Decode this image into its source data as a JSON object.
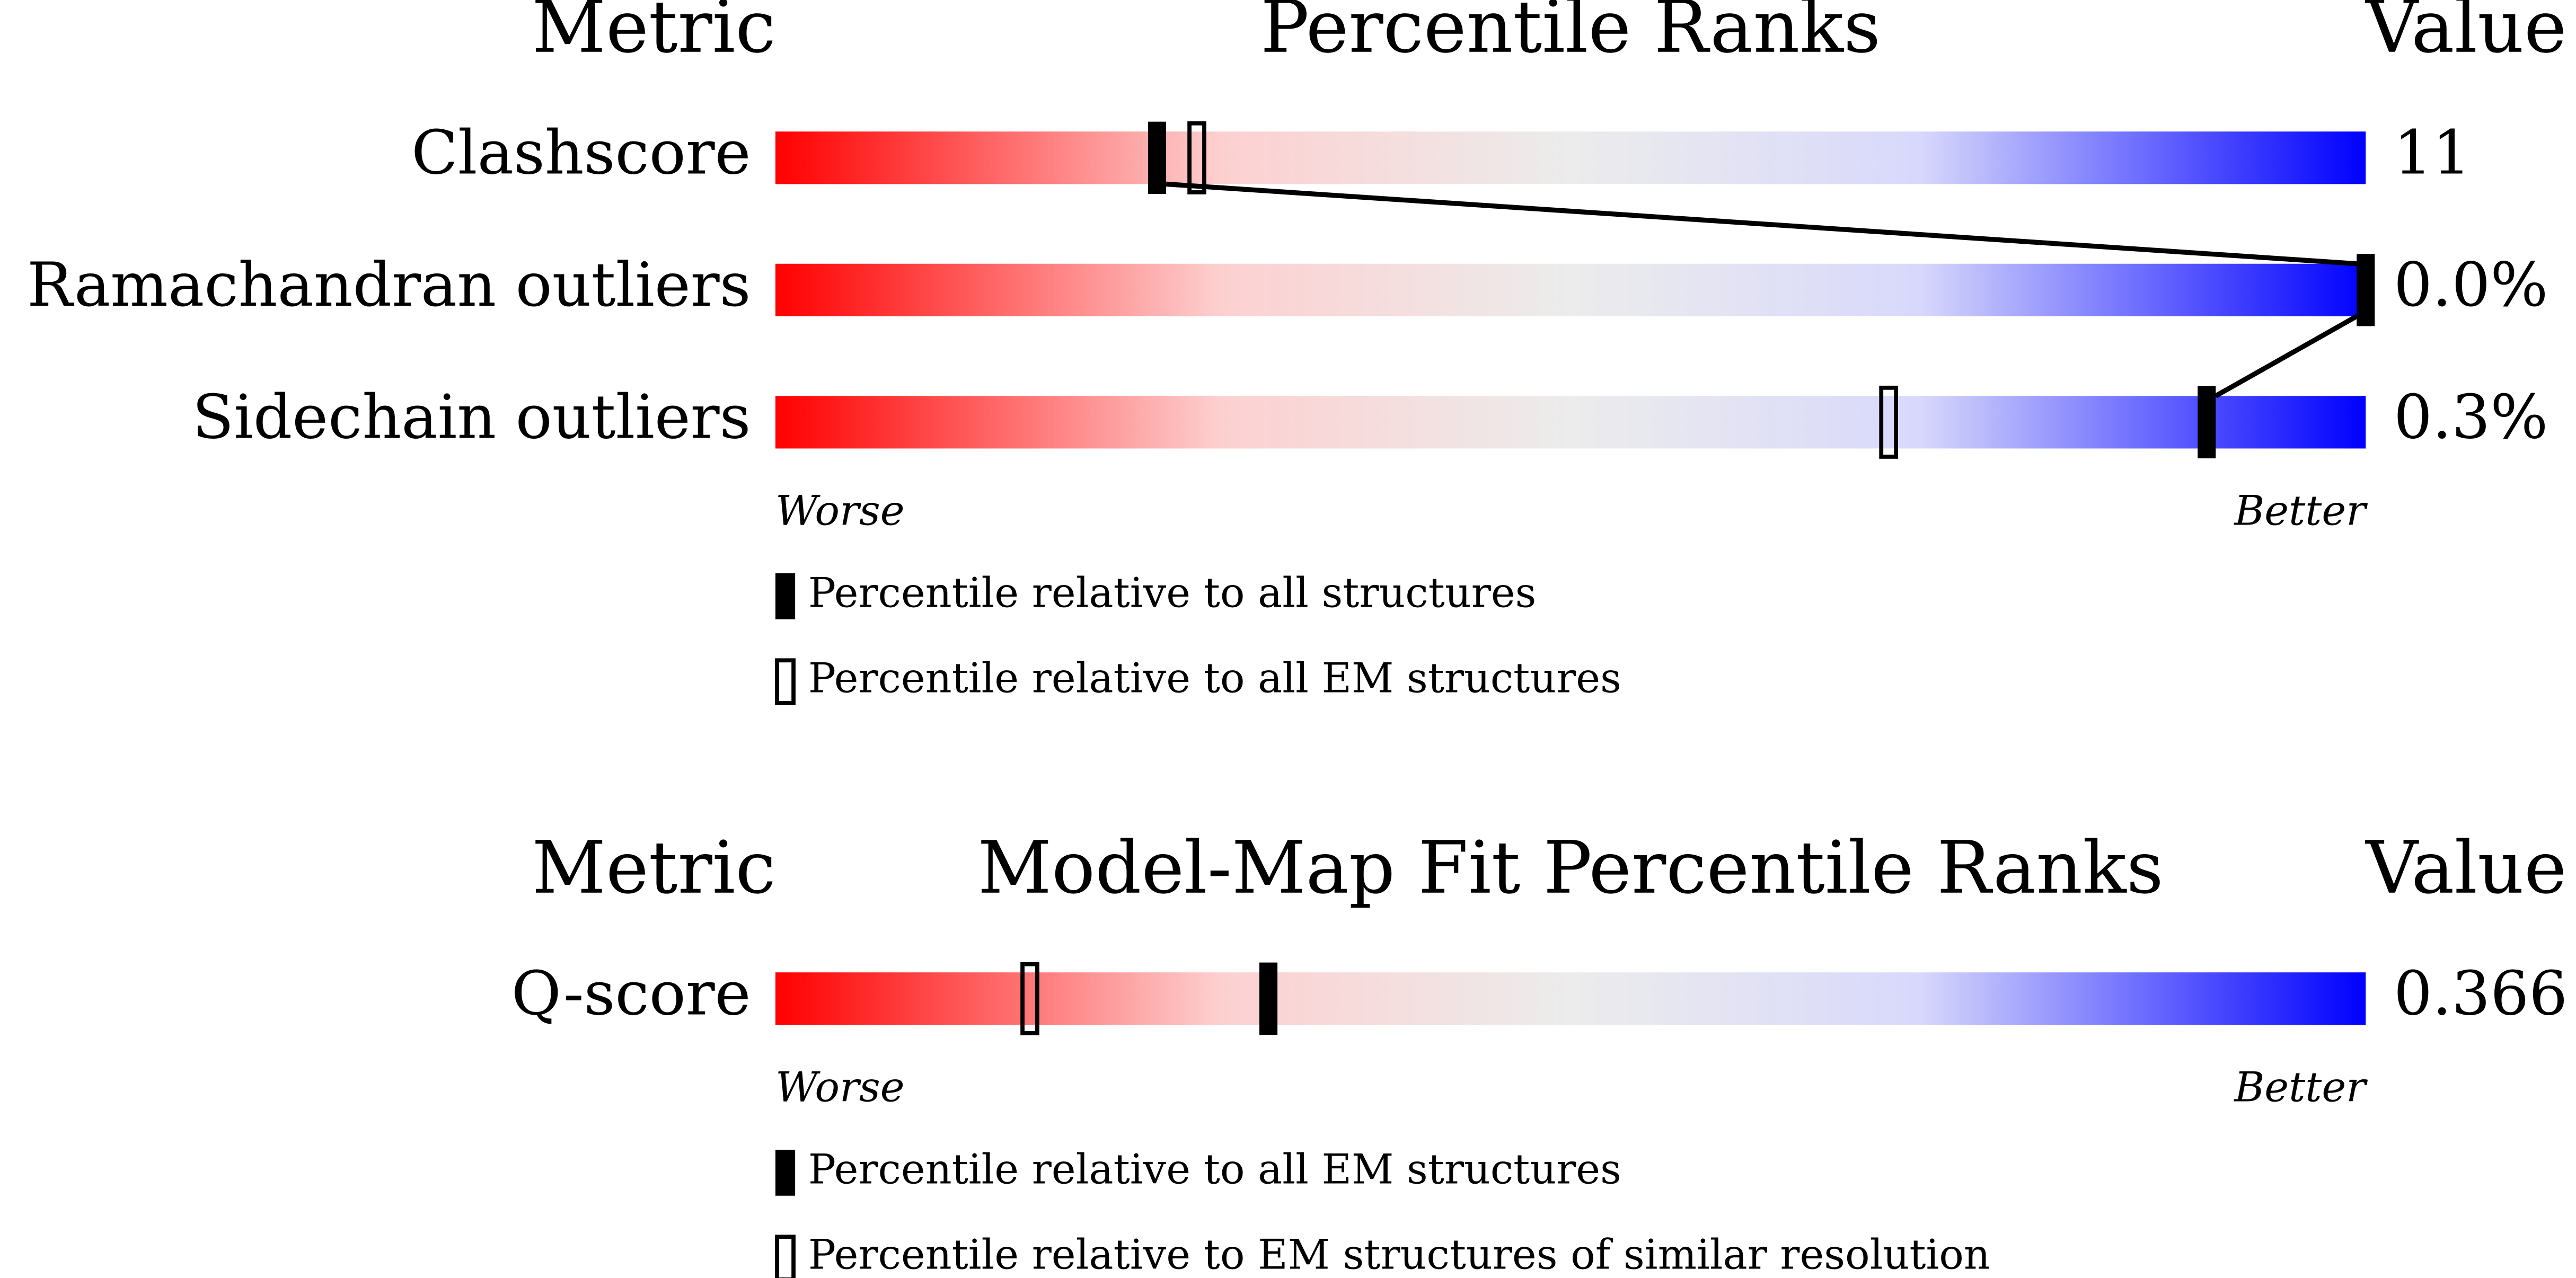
{
  "panels": [
    {
      "headers": {
        "metric": "Metric",
        "title": "Percentile Ranks",
        "value": "Value"
      },
      "xlim": [
        0,
        100
      ],
      "rows": [
        {
          "metric": "Clashscore",
          "value": "11",
          "percentile_filled": 24,
          "percentile_open": 26.5
        },
        {
          "metric": "Ramachandran outliers",
          "value": "0.0%",
          "percentile_filled": 100,
          "percentile_open": null
        },
        {
          "metric": "Sidechain outliers",
          "value": "0.3%",
          "percentile_filled": 90,
          "percentile_open": 70
        }
      ],
      "worse": "Worse",
      "better": "Better",
      "legend": {
        "filled": "Percentile relative to all structures",
        "open": "Percentile relative to all EM structures"
      }
    },
    {
      "headers": {
        "metric": "Metric",
        "title": "Model-Map Fit Percentile Ranks",
        "value": "Value"
      },
      "xlim": [
        0,
        100
      ],
      "rows": [
        {
          "metric": "Q-score",
          "value": "0.366",
          "percentile_filled": 31,
          "percentile_open": 16
        }
      ],
      "worse": "Worse",
      "better": "Better",
      "legend": {
        "filled": "Percentile relative to all EM structures",
        "open": "Percentile relative to EM structures of similar resolution"
      }
    }
  ]
}
